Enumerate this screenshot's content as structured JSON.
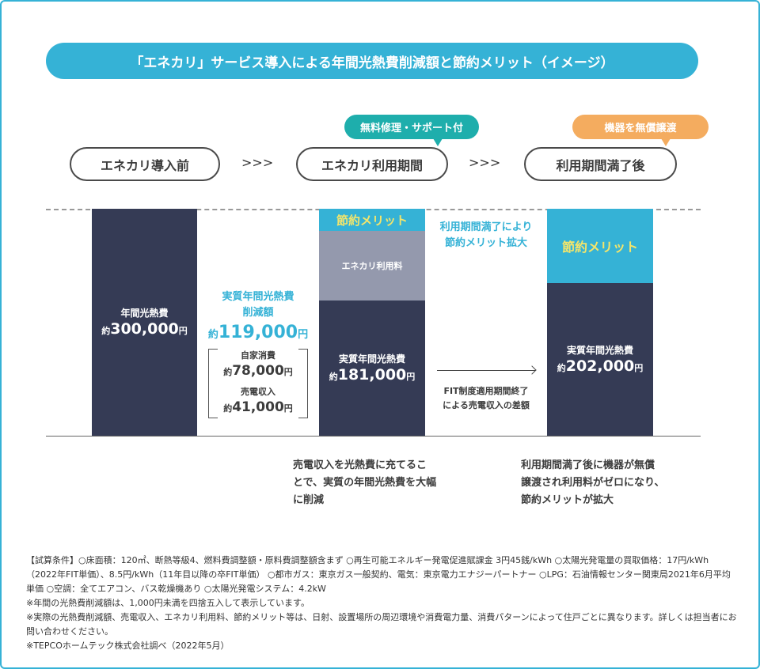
{
  "title": "「エネカリ」サービス導入による年間光熱費削減額と節約メリット（イメージ）",
  "steps": [
    {
      "label": "エネカリ導入前"
    },
    {
      "label": "エネカリ利用期間"
    },
    {
      "label": "利用期間満了後"
    }
  ],
  "step_arrow": ">>>",
  "badges": [
    {
      "label": "無料修理・サポート付",
      "color": "#1eaeac"
    },
    {
      "label": "機器を無償譲渡",
      "color": "#f4ac5f"
    }
  ],
  "colors": {
    "accent": "#35b2d6",
    "navy": "#353b55",
    "gray": "#9499ad",
    "merit_text": "#f3e56b"
  },
  "bar1": {
    "label": "年間光熱費",
    "prefix": "約",
    "value": "300,000",
    "unit": "円"
  },
  "savings": {
    "title1": "実質年間光熱費",
    "title2": "削減額",
    "prefix": "約",
    "value": "119,000",
    "unit": "円",
    "items": [
      {
        "label": "自家消費",
        "prefix": "約",
        "value": "78,000",
        "unit": "円"
      },
      {
        "label": "売電収入",
        "prefix": "約",
        "value": "41,000",
        "unit": "円"
      }
    ]
  },
  "bar2": {
    "merit": "節約メリット",
    "fee": "エネカリ利用料",
    "label": "実質年間光熱費",
    "prefix": "約",
    "value": "181,000",
    "unit": "円"
  },
  "expand": {
    "line1": "利用期間満了により",
    "line2": "節約メリット拡大"
  },
  "fit": {
    "line1": "FIT制度適用期間終了",
    "line2": "による売電収入の差額"
  },
  "bar3": {
    "merit": "節約メリット",
    "label": "実質年間光熱費",
    "prefix": "約",
    "value": "202,000",
    "unit": "円"
  },
  "note1": [
    "売電収入を光熱費に充てるこ",
    "とで、実質の年間光熱費を大幅",
    "に削減"
  ],
  "note2": [
    "利用期間満了後に機器が無償",
    "譲渡され利用料がゼロになり、",
    "節約メリットが拡大"
  ],
  "footnotes": [
    "【試算条件】○床面積：120㎡、断熱等級4、燃料費調整額・原料費調整額含まず ○再生可能エネルギー発電促進賦課金 3円45銭/kWh ○太陽光発電量の買取価格：17円/kWh（2022年FIT単価）、8.5円/kWh（11年目以降の卒FIT単価） ○都市ガス：東京ガス一般契約、電気：東京電力エナジーパートナー ○LPG：石油情報センター関東局2021年6月平均単価 ○空調：全てエアコン、バス乾燥機あり ○太陽光発電システム：4.2kW",
    "※年間の光熱費削減額は、1,000円未満を四捨五入して表示しています。",
    "※実際の光熱費削減額、売電収入、エネカリ利用料、節約メリット等は、日射、設置場所の周辺環境や消費電力量、消費パターンによって住戸ごとに異なります。詳しくは担当者にお問い合わせください。",
    "※TEPCOホームテック株式会社調べ（2022年5月）"
  ]
}
